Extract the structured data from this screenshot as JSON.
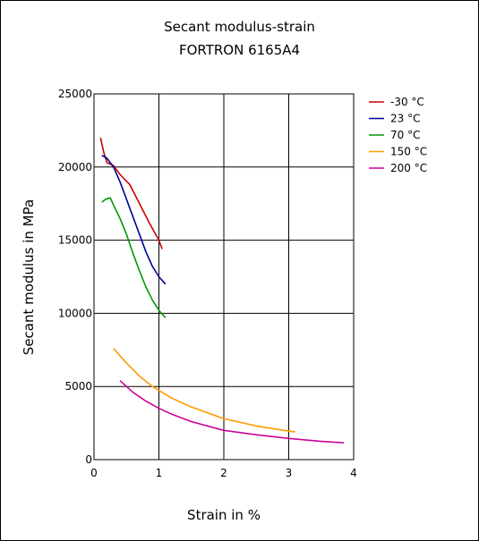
{
  "chart_data": {
    "type": "line",
    "title": "Secant modulus-strain",
    "subtitle": "FORTRON 6165A4",
    "xlabel": "Strain in %",
    "ylabel": "Secant modulus in MPa",
    "xlim": [
      0,
      4
    ],
    "ylim": [
      0,
      25000
    ],
    "xticks": [
      "0",
      "1",
      "2",
      "3",
      "4"
    ],
    "yticks": [
      "0",
      "5000",
      "10000",
      "15000",
      "20000",
      "25000"
    ],
    "grid": true,
    "legend_position": "top-right",
    "series": [
      {
        "name": "-30 °C",
        "color": "#cc0000",
        "points": [
          [
            0.1,
            22000
          ],
          [
            0.15,
            21000
          ],
          [
            0.2,
            20300
          ],
          [
            0.3,
            20100
          ],
          [
            0.4,
            19500
          ],
          [
            0.55,
            18800
          ],
          [
            0.7,
            17500
          ],
          [
            0.85,
            16200
          ],
          [
            1.0,
            15000
          ],
          [
            1.05,
            14400
          ]
        ]
      },
      {
        "name": "23 °C",
        "color": "#000099",
        "points": [
          [
            0.12,
            20800
          ],
          [
            0.2,
            20600
          ],
          [
            0.3,
            20000
          ],
          [
            0.4,
            19000
          ],
          [
            0.5,
            17800
          ],
          [
            0.6,
            16600
          ],
          [
            0.7,
            15400
          ],
          [
            0.8,
            14200
          ],
          [
            0.9,
            13200
          ],
          [
            1.0,
            12500
          ],
          [
            1.1,
            12000
          ]
        ]
      },
      {
        "name": "70 °C",
        "color": "#009900",
        "points": [
          [
            0.12,
            17600
          ],
          [
            0.18,
            17800
          ],
          [
            0.25,
            17900
          ],
          [
            0.3,
            17400
          ],
          [
            0.4,
            16500
          ],
          [
            0.5,
            15400
          ],
          [
            0.6,
            14100
          ],
          [
            0.7,
            12900
          ],
          [
            0.8,
            11800
          ],
          [
            0.9,
            10900
          ],
          [
            1.0,
            10200
          ],
          [
            1.1,
            9700
          ]
        ]
      },
      {
        "name": "150 °C",
        "color": "#ff9900",
        "points": [
          [
            0.3,
            7600
          ],
          [
            0.5,
            6600
          ],
          [
            0.7,
            5700
          ],
          [
            0.9,
            5000
          ],
          [
            1.2,
            4200
          ],
          [
            1.5,
            3600
          ],
          [
            2.0,
            2800
          ],
          [
            2.5,
            2300
          ],
          [
            3.0,
            1950
          ],
          [
            3.1,
            1900
          ]
        ]
      },
      {
        "name": "200 °C",
        "color": "#cc0099",
        "points": [
          [
            0.4,
            5400
          ],
          [
            0.6,
            4600
          ],
          [
            0.8,
            4000
          ],
          [
            1.0,
            3500
          ],
          [
            1.2,
            3100
          ],
          [
            1.5,
            2600
          ],
          [
            2.0,
            2000
          ],
          [
            2.5,
            1700
          ],
          [
            3.0,
            1450
          ],
          [
            3.5,
            1250
          ],
          [
            3.85,
            1150
          ]
        ]
      }
    ]
  }
}
